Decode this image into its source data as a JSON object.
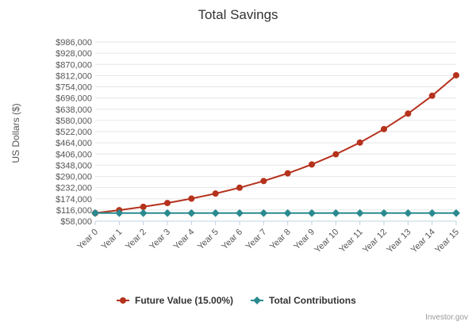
{
  "chart_data": {
    "type": "line",
    "title": "Total Savings",
    "ylabel": "US Dollars ($)",
    "xlabel": "",
    "categories": [
      "Year 0",
      "Year 1",
      "Year 2",
      "Year 3",
      "Year 4",
      "Year 5",
      "Year 6",
      "Year 7",
      "Year 8",
      "Year 9",
      "Year 10",
      "Year 11",
      "Year 12",
      "Year 13",
      "Year 14",
      "Year 15"
    ],
    "ylim": [
      58000,
      986000
    ],
    "yticks": [
      58000,
      116000,
      174000,
      232000,
      290000,
      348000,
      406000,
      464000,
      522000,
      580000,
      638000,
      696000,
      754000,
      812000,
      870000,
      928000,
      986000
    ],
    "ytick_labels": [
      "$58,000",
      "$116,000",
      "$174,000",
      "$232,000",
      "$290,000",
      "$348,000",
      "$406,000",
      "$464,000",
      "$522,000",
      "$580,000",
      "$638,000",
      "$696,000",
      "$754,000",
      "$812,000",
      "$870,000",
      "$928,000",
      "$986,000"
    ],
    "grid": true,
    "legend_position": "bottom",
    "series": [
      {
        "name": "Future Value (15.00%)",
        "color": "#b5321c",
        "marker": "circle",
        "values": [
          100000,
          115000,
          132250,
          152088,
          174901,
          201136,
          231306,
          266002,
          305902,
          351788,
          404556,
          465239,
          535025,
          615279,
          707570,
          813706
        ]
      },
      {
        "name": "Total Contributions",
        "color": "#2a8a8f",
        "marker": "diamond",
        "values": [
          100000,
          100000,
          100000,
          100000,
          100000,
          100000,
          100000,
          100000,
          100000,
          100000,
          100000,
          100000,
          100000,
          100000,
          100000,
          100000
        ]
      }
    ],
    "credit": "Investor.gov"
  }
}
